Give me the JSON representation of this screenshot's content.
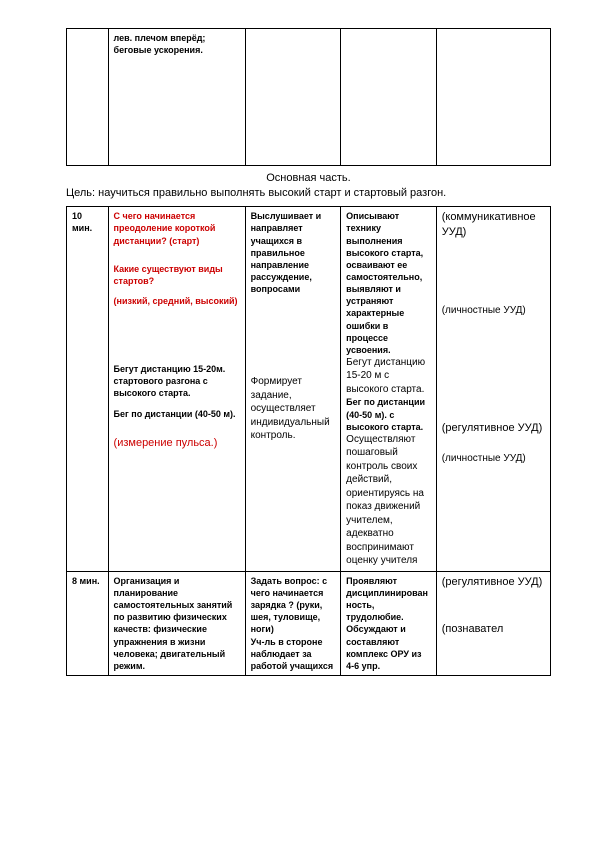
{
  "topRow": {
    "col2": "лев. плечом вперёд; беговые ускорения."
  },
  "section": {
    "title": "Основная часть.",
    "goal": "Цель: научиться правильно выполнять высокий старт и стартовый разгон."
  },
  "row2": {
    "col1": "10 мин.",
    "q1": "С чего начинается преодоление короткой дистанции? (старт)",
    "q2": "Какие существуют виды стартов?",
    "q3": "(низкий, средний, высокий)",
    "t1": "Бегут дистанцию 15-20м. стартового разгона с высокого старта.",
    "t2": "Бег по дистанции (40-50 м).",
    "pulse": "(измерение пульса.)",
    "c3a": "Выслушивает и направляет учащихся в правильное направление рассуждение, вопросами",
    "c3b": "Формирует задание, осуществляет индивидуальный контроль.",
    "c4a": "Описывают технику выполнения высокого старта, осваивают ее самостоятельно, выявляют и устраняют характерные ошибки в процессе усвоения.",
    "c4b": "Бегут дистанцию 15-20 м с высокого старта.",
    "c4c": "Бег по дистанции (40-50 м). с высокого старта.",
    "c4d": "Осуществляют пошаговый контроль своих действий, ориентируясь на показ движений учителем, адекватно воспринимают оценку учителя",
    "u1": "(коммуникативное УУД)",
    "u2": "(личностные УУД)",
    "u3": "(регулятивное УУД)",
    "u4": "(личностные УУД)"
  },
  "row3": {
    "col1": "8 мин.",
    "c2": "Организация и планирование самостоятельных занятий по развитию физических качеств: физические упражнения в жизни человека; двигательный режим.",
    "c3a": "Задать вопрос: с чего начинается зарядка ? (руки, шея, туловище, ноги)",
    "c3b": "Уч-ль в стороне наблюдает за работой учащихся",
    "c4a": "Проявляют дисциплинированность, трудолюбие.",
    "c4b": "Обсуждают и составляют комплекс ОРУ из 4-6 упр.",
    "u1": "(регулятивное УУД)",
    "u2": "(познавател"
  }
}
